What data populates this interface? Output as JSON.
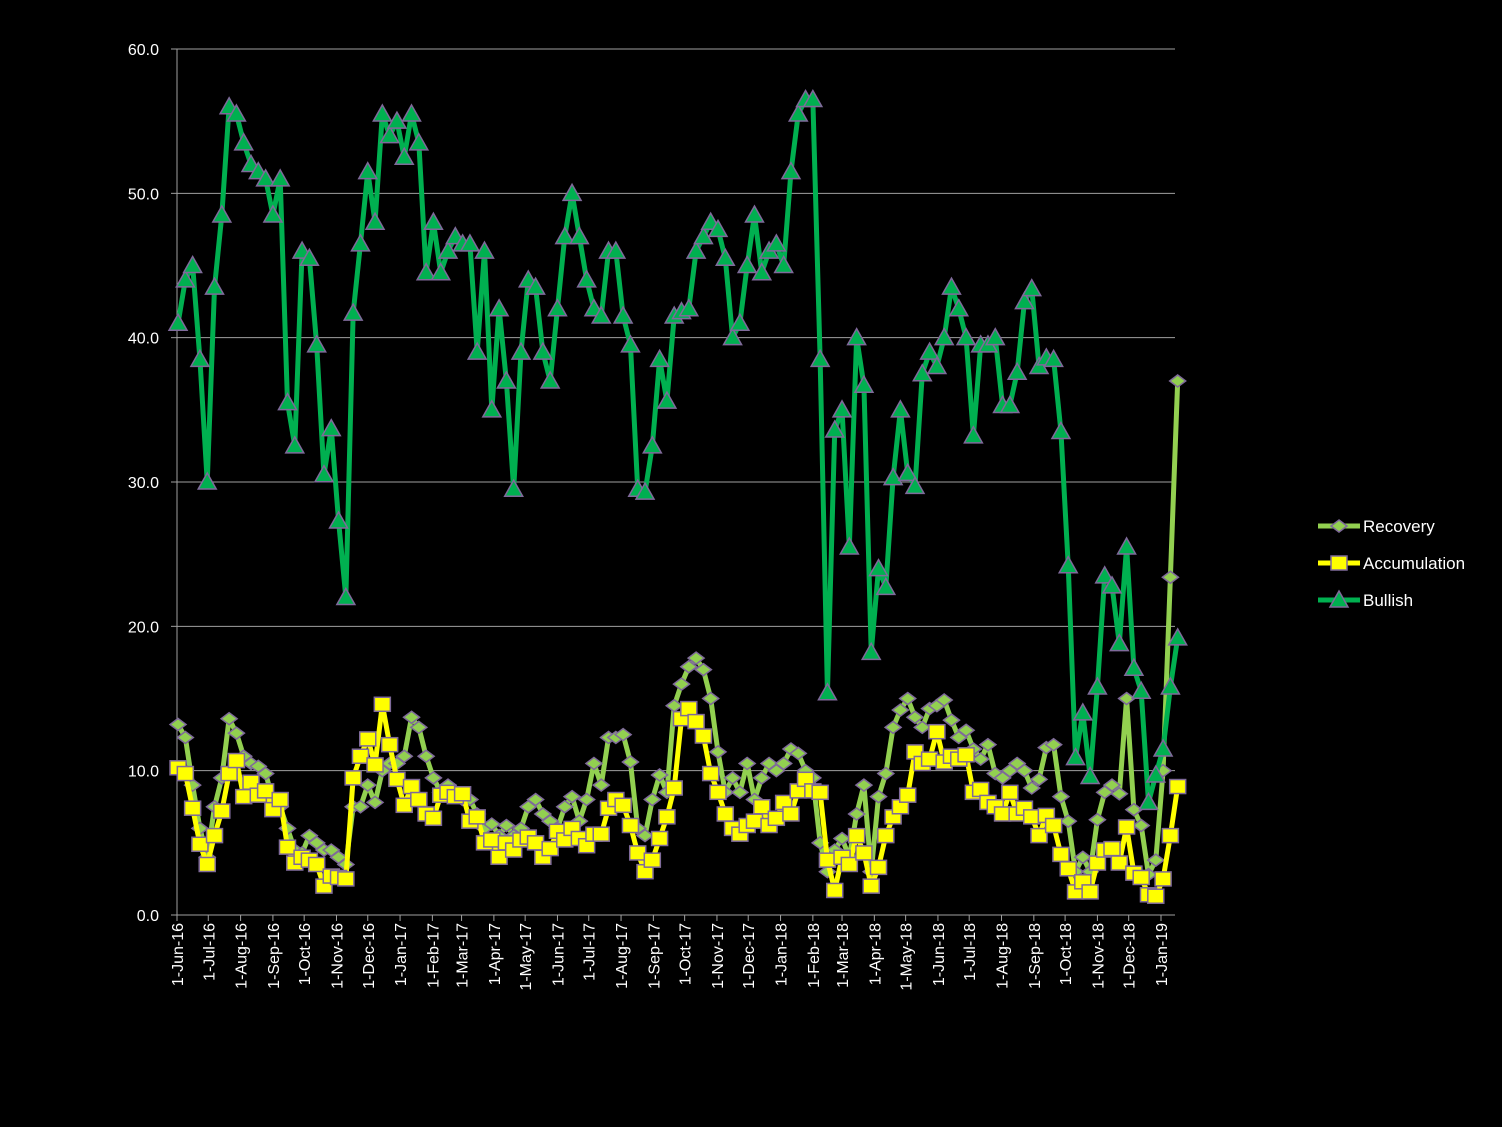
{
  "chart_data": {
    "type": "line",
    "title": "",
    "xlabel": "",
    "ylabel": "",
    "ylim": [
      0,
      60
    ],
    "yticks": [
      "0.0",
      "10.0",
      "20.0",
      "30.0",
      "40.0",
      "50.0",
      "60.0"
    ],
    "xtick_labels": [
      "1-Jun-16",
      "1-Jul-16",
      "1-Aug-16",
      "1-Sep-16",
      "1-Oct-16",
      "1-Nov-16",
      "1-Dec-16",
      "1-Jan-17",
      "1-Feb-17",
      "1-Mar-17",
      "1-Apr-17",
      "1-May-17",
      "1-Jun-17",
      "1-Jul-17",
      "1-Aug-17",
      "1-Sep-17",
      "1-Oct-17",
      "1-Nov-17",
      "1-Dec-17",
      "1-Jan-18",
      "1-Feb-18",
      "1-Mar-18",
      "1-Apr-18",
      "1-May-18",
      "1-Jun-18",
      "1-Jul-18",
      "1-Aug-18",
      "1-Sep-18",
      "1-Oct-18",
      "1-Nov-18",
      "1-Dec-18",
      "1-Jan-19"
    ],
    "xtick_dates": [
      "2016-06-01",
      "2016-07-01",
      "2016-08-01",
      "2016-09-01",
      "2016-10-01",
      "2016-11-01",
      "2016-12-01",
      "2017-01-01",
      "2017-02-01",
      "2017-03-01",
      "2017-04-01",
      "2017-05-01",
      "2017-06-01",
      "2017-07-01",
      "2017-08-01",
      "2017-09-01",
      "2017-10-01",
      "2017-11-01",
      "2017-12-01",
      "2018-01-01",
      "2018-02-01",
      "2018-03-01",
      "2018-04-01",
      "2018-05-01",
      "2018-06-01",
      "2018-07-01",
      "2018-08-01",
      "2018-09-01",
      "2018-10-01",
      "2018-11-01",
      "2018-12-01",
      "2019-01-01"
    ],
    "grid": true,
    "legend_position": "right",
    "x": [
      "2016-06-02",
      "2016-06-09",
      "2016-06-16",
      "2016-06-23",
      "2016-06-30",
      "2016-07-07",
      "2016-07-14",
      "2016-07-21",
      "2016-07-28",
      "2016-08-04",
      "2016-08-11",
      "2016-08-18",
      "2016-08-25",
      "2016-09-01",
      "2016-09-08",
      "2016-09-15",
      "2016-09-22",
      "2016-09-29",
      "2016-10-06",
      "2016-10-13",
      "2016-10-20",
      "2016-10-27",
      "2016-11-03",
      "2016-11-10",
      "2016-11-17",
      "2016-11-24",
      "2016-12-01",
      "2016-12-08",
      "2016-12-15",
      "2016-12-22",
      "2016-12-29",
      "2017-01-05",
      "2017-01-12",
      "2017-01-19",
      "2017-01-26",
      "2017-02-02",
      "2017-02-09",
      "2017-02-16",
      "2017-02-23",
      "2017-03-02",
      "2017-03-09",
      "2017-03-16",
      "2017-03-23",
      "2017-03-30",
      "2017-04-06",
      "2017-04-13",
      "2017-04-20",
      "2017-04-27",
      "2017-05-04",
      "2017-05-11",
      "2017-05-18",
      "2017-05-25",
      "2017-06-01",
      "2017-06-08",
      "2017-06-15",
      "2017-06-22",
      "2017-06-29",
      "2017-07-06",
      "2017-07-13",
      "2017-07-20",
      "2017-07-27",
      "2017-08-03",
      "2017-08-10",
      "2017-08-17",
      "2017-08-24",
      "2017-08-31",
      "2017-09-07",
      "2017-09-14",
      "2017-09-21",
      "2017-09-28",
      "2017-10-05",
      "2017-10-12",
      "2017-10-19",
      "2017-10-26",
      "2017-11-02",
      "2017-11-09",
      "2017-11-16",
      "2017-11-23",
      "2017-11-30",
      "2017-12-07",
      "2017-12-14",
      "2017-12-21",
      "2017-12-28",
      "2018-01-04",
      "2018-01-11",
      "2018-01-18",
      "2018-01-25",
      "2018-02-01",
      "2018-02-08",
      "2018-02-15",
      "2018-02-22",
      "2018-03-01",
      "2018-03-08",
      "2018-03-15",
      "2018-03-22",
      "2018-03-29",
      "2018-04-05",
      "2018-04-12",
      "2018-04-19",
      "2018-04-26",
      "2018-05-03",
      "2018-05-10",
      "2018-05-17",
      "2018-05-24",
      "2018-05-31",
      "2018-06-07",
      "2018-06-14",
      "2018-06-21",
      "2018-06-28",
      "2018-07-05",
      "2018-07-12",
      "2018-07-19",
      "2018-07-26",
      "2018-08-02",
      "2018-08-09",
      "2018-08-16",
      "2018-08-23",
      "2018-08-30",
      "2018-09-06",
      "2018-09-13",
      "2018-09-20",
      "2018-09-27",
      "2018-10-04",
      "2018-10-11",
      "2018-10-18",
      "2018-10-25",
      "2018-11-01",
      "2018-11-08",
      "2018-11-15",
      "2018-11-22",
      "2018-11-29",
      "2018-12-06",
      "2018-12-13",
      "2018-12-20",
      "2018-12-27",
      "2019-01-03",
      "2019-01-10",
      "2019-01-17"
    ],
    "series": [
      {
        "name": "Recovery",
        "color": "#92D050",
        "marker": "diamond",
        "values": [
          13.2,
          12.3,
          9,
          6,
          4,
          7.5,
          9.5,
          13.6,
          12.6,
          11,
          10.5,
          10.3,
          9.8,
          8,
          7.5,
          6,
          4.5,
          4.3,
          5.5,
          5,
          4.5,
          4.5,
          4,
          3.5,
          7.5,
          7.5,
          9,
          7.8,
          10,
          10.5,
          10.5,
          11,
          13.7,
          13,
          11,
          9.5,
          8.5,
          9,
          8.5,
          8,
          8,
          7,
          6,
          6.3,
          5.5,
          6.2,
          5.5,
          6,
          7.5,
          8,
          7,
          6.5,
          6,
          7.5,
          8.2,
          6.5,
          8,
          10.5,
          9,
          12.3,
          12.3,
          12.5,
          10.6,
          6,
          5.5,
          8,
          9.7,
          8.5,
          14.5,
          16,
          17.2,
          17.8,
          17,
          15,
          11.3,
          8.5,
          9.5,
          8.5,
          10.5,
          8,
          9.5,
          10.5,
          10,
          10.5,
          11.5,
          11.2,
          10,
          9.5,
          5,
          3,
          4.5,
          5.3,
          4,
          7,
          9,
          3,
          8.2,
          9.8,
          13,
          14.2,
          15,
          13.7,
          13,
          14.3,
          14.5,
          14.9,
          13.5,
          12.3,
          12.8,
          11.5,
          10.8,
          11.8,
          9.8,
          9.5,
          10,
          10.5,
          10,
          8.8,
          9.4,
          11.6,
          11.8,
          8.2,
          6.5,
          3,
          4,
          3,
          6.6,
          8.5,
          9,
          8.4,
          15,
          7.3,
          6.2,
          2.8,
          3.8,
          10,
          23.4,
          37
        ]
      },
      {
        "name": "Accumulation",
        "color": "#FFFF00",
        "marker": "square",
        "values": [
          10.2,
          9.8,
          7.4,
          4.9,
          3.5,
          5.5,
          7.2,
          9.8,
          10.7,
          8.2,
          9.2,
          8.3,
          8.6,
          7.3,
          8,
          4.7,
          3.6,
          4,
          3.8,
          3.5,
          2,
          2.7,
          2.6,
          2.5,
          9.5,
          11,
          12.2,
          10.4,
          14.6,
          11.8,
          9.4,
          7.6,
          8.9,
          8,
          7,
          6.7,
          8.3,
          8.5,
          8.2,
          8.4,
          6.5,
          6.8,
          5,
          5.2,
          4,
          5,
          4.5,
          5.2,
          5.4,
          5,
          4,
          4.6,
          5.8,
          5.2,
          6,
          5.3,
          4.8,
          5.6,
          5.6,
          7.4,
          8,
          7.6,
          6.2,
          4.3,
          3,
          3.8,
          5.3,
          6.8,
          8.8,
          13.6,
          14.3,
          13.4,
          12.4,
          9.8,
          8.5,
          7,
          6,
          5.6,
          6.2,
          6.5,
          7.5,
          6.2,
          6.7,
          7.8,
          7,
          8.6,
          9.4,
          8.6,
          8.5,
          3.8,
          1.7,
          4,
          3.5,
          5.5,
          4.3,
          2,
          3.3,
          5.5,
          6.8,
          7.5,
          8.3,
          11.3,
          10.5,
          10.8,
          12.7,
          10.6,
          11,
          10.8,
          11.1,
          8.5,
          8.7,
          7.8,
          7.5,
          7,
          8.5,
          7,
          7.4,
          6.8,
          5.5,
          6.9,
          6.2,
          4.2,
          3.2,
          1.6,
          2.3,
          1.6,
          3.6,
          4.5,
          4.6,
          3.6,
          6.1,
          2.9,
          2.6,
          1.4,
          1.3,
          2.5,
          5.5,
          8.9
        ]
      },
      {
        "name": "Bullish",
        "color": "#00B050",
        "marker": "triangle",
        "values": [
          41,
          44,
          45,
          38.5,
          30,
          43.5,
          48.5,
          56,
          55.5,
          53.5,
          52,
          51.5,
          51,
          48.5,
          51,
          35.5,
          32.5,
          46,
          45.5,
          39.5,
          30.5,
          33.7,
          27.3,
          22,
          41.7,
          46.5,
          51.5,
          48,
          55.5,
          54,
          55,
          52.5,
          55.5,
          53.5,
          44.5,
          48,
          44.5,
          46,
          47,
          46.5,
          46.5,
          39,
          46,
          35,
          42,
          37,
          29.5,
          39,
          44,
          43.5,
          39,
          37,
          42,
          47,
          50,
          47,
          44,
          42,
          41.5,
          46,
          46,
          41.5,
          39.5,
          29.5,
          29.3,
          32.5,
          38.5,
          35.6,
          41.5,
          41.8,
          42,
          46,
          47,
          48,
          47.5,
          45.5,
          40,
          41,
          45,
          48.5,
          44.5,
          46,
          46.5,
          45,
          51.5,
          55.5,
          56.5,
          56.5,
          38.5,
          15.4,
          33.6,
          35,
          25.5,
          40,
          36.7,
          18.2,
          24,
          22.7,
          30.3,
          35,
          30.6,
          29.7,
          37.5,
          39,
          38,
          40,
          43.5,
          42,
          40,
          33.2,
          39.5,
          39.5,
          40,
          35.3,
          35.3,
          37.6,
          42.5,
          43.4,
          38,
          38.6,
          38.5,
          33.5,
          24.2,
          10.9,
          14,
          9.6,
          15.8,
          23.5,
          22.8,
          18.8,
          25.5,
          17.1,
          15.5,
          7.8,
          9.7,
          11.5,
          15.8,
          19.2
        ]
      }
    ],
    "legend_order": [
      "Recovery",
      "Accumulation",
      "Bullish"
    ],
    "marker_edge_color": "#7F6A9A",
    "grid_color": "#A0A0A0"
  }
}
